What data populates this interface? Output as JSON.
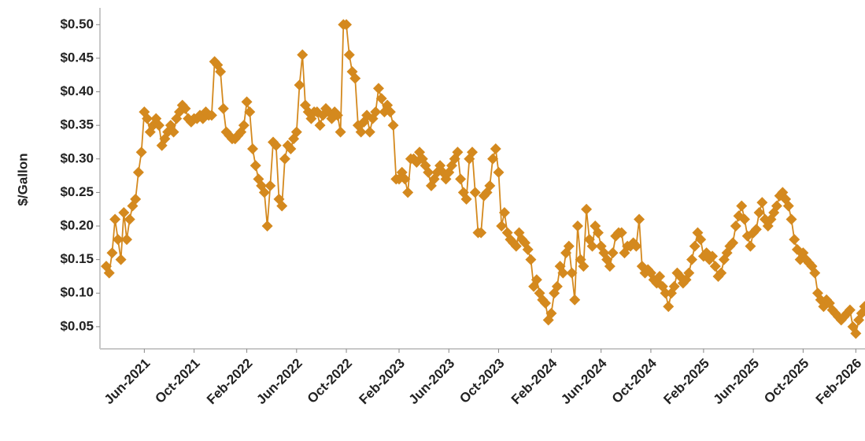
{
  "chart_data": {
    "type": "line",
    "y_label": "$/Gallon",
    "ylim": [
      0.017,
      0.525
    ],
    "yticks": [
      {
        "value": 0.05,
        "label": "$0.05"
      },
      {
        "value": 0.1,
        "label": "$0.10"
      },
      {
        "value": 0.15,
        "label": "$0.15"
      },
      {
        "value": 0.2,
        "label": "$0.20"
      },
      {
        "value": 0.25,
        "label": "$0.25"
      },
      {
        "value": 0.3,
        "label": "$0.30"
      },
      {
        "value": 0.35,
        "label": "$0.35"
      },
      {
        "value": 0.4,
        "label": "$0.40"
      },
      {
        "value": 0.45,
        "label": "$0.45"
      },
      {
        "value": 0.5,
        "label": "$0.50"
      }
    ],
    "categories": [
      null,
      null,
      null,
      null,
      null,
      null,
      null,
      null,
      null,
      null,
      null,
      null,
      null,
      "Jun-2021",
      null,
      null,
      null,
      null,
      null,
      null,
      null,
      null,
      null,
      null,
      null,
      null,
      null,
      null,
      null,
      null,
      "Oct-2021",
      null,
      null,
      null,
      null,
      null,
      null,
      null,
      null,
      null,
      null,
      null,
      null,
      null,
      null,
      null,
      null,
      null,
      "Feb-2022",
      null,
      null,
      null,
      null,
      null,
      null,
      null,
      null,
      null,
      null,
      null,
      null,
      null,
      null,
      null,
      null,
      "Jun-2022",
      null,
      null,
      null,
      null,
      null,
      null,
      null,
      null,
      null,
      null,
      null,
      null,
      null,
      null,
      null,
      null,
      "Oct-2022",
      null,
      null,
      null,
      null,
      null,
      null,
      null,
      null,
      null,
      null,
      null,
      null,
      null,
      null,
      null,
      null,
      null,
      "Feb-2023",
      null,
      null,
      null,
      null,
      null,
      null,
      null,
      null,
      null,
      null,
      null,
      null,
      null,
      null,
      null,
      null,
      "Jun-2023",
      null,
      null,
      null,
      null,
      null,
      null,
      null,
      null,
      null,
      null,
      null,
      null,
      null,
      null,
      null,
      null,
      "Oct-2023",
      null,
      null,
      null,
      null,
      null,
      null,
      null,
      null,
      null,
      null,
      null,
      null,
      null,
      null,
      null,
      null,
      null,
      "Feb-2024",
      null,
      null,
      null,
      null,
      null,
      null,
      null,
      null,
      null,
      null,
      null,
      null,
      null,
      null,
      null,
      null,
      "Jun-2024",
      null,
      null,
      null,
      null,
      null,
      null,
      null,
      null,
      null,
      null,
      null,
      null,
      null,
      null,
      null,
      null,
      "Oct-2024",
      null,
      null,
      null,
      null,
      null,
      null,
      null,
      null,
      null,
      null,
      null,
      null,
      null,
      null,
      null,
      null,
      null,
      "Feb-2025",
      null,
      null,
      null,
      null,
      null,
      null,
      null,
      null,
      null,
      null,
      null,
      null,
      null,
      null,
      null,
      null,
      "Jun-2025",
      null,
      null,
      null,
      null,
      null,
      null,
      null,
      null,
      null,
      null,
      null,
      null,
      null,
      null,
      null,
      null,
      "Oct-2025",
      null,
      null,
      null,
      null,
      null,
      null,
      null,
      null,
      null,
      null,
      null,
      null,
      null,
      null,
      null,
      null,
      null,
      "Feb-2026",
      null,
      null,
      null
    ],
    "series": [
      {
        "color": "#d4891e",
        "values": [
          0.14,
          0.13,
          0.16,
          0.21,
          0.18,
          0.15,
          0.22,
          0.18,
          0.21,
          0.23,
          0.24,
          0.28,
          0.31,
          0.37,
          0.36,
          0.34,
          0.35,
          0.36,
          0.35,
          0.32,
          0.33,
          0.34,
          0.35,
          0.34,
          0.36,
          0.37,
          0.38,
          0.375,
          0.36,
          0.355,
          0.36,
          0.36,
          0.365,
          0.36,
          0.37,
          0.365,
          0.365,
          0.445,
          0.44,
          0.43,
          0.375,
          0.34,
          0.335,
          0.33,
          0.33,
          0.335,
          0.34,
          0.35,
          0.385,
          0.37,
          0.315,
          0.29,
          0.27,
          0.26,
          0.25,
          0.2,
          0.26,
          0.325,
          0.32,
          0.24,
          0.23,
          0.3,
          0.32,
          0.315,
          0.33,
          0.34,
          0.41,
          0.455,
          0.38,
          0.37,
          0.36,
          0.37,
          0.37,
          0.35,
          0.365,
          0.375,
          0.37,
          0.36,
          0.37,
          0.365,
          0.34,
          0.5,
          0.5,
          0.455,
          0.43,
          0.42,
          0.35,
          0.34,
          0.355,
          0.365,
          0.34,
          0.36,
          0.37,
          0.405,
          0.39,
          0.37,
          0.38,
          0.37,
          0.35,
          0.27,
          0.27,
          0.28,
          0.27,
          0.25,
          0.3,
          0.3,
          0.295,
          0.31,
          0.3,
          0.29,
          0.28,
          0.26,
          0.27,
          0.28,
          0.29,
          0.28,
          0.27,
          0.28,
          0.29,
          0.3,
          0.31,
          0.27,
          0.25,
          0.24,
          0.3,
          0.31,
          0.25,
          0.19,
          0.19,
          0.245,
          0.25,
          0.26,
          0.3,
          0.315,
          0.28,
          0.2,
          0.22,
          0.19,
          0.18,
          0.175,
          0.17,
          0.19,
          0.18,
          0.175,
          0.165,
          0.15,
          0.11,
          0.12,
          0.1,
          0.09,
          0.085,
          0.06,
          0.07,
          0.1,
          0.11,
          0.14,
          0.13,
          0.16,
          0.17,
          0.13,
          0.09,
          0.2,
          0.15,
          0.14,
          0.225,
          0.18,
          0.17,
          0.2,
          0.19,
          0.17,
          0.16,
          0.15,
          0.14,
          0.16,
          0.185,
          0.19,
          0.19,
          0.16,
          0.17,
          0.17,
          0.175,
          0.17,
          0.21,
          0.14,
          0.13,
          0.135,
          0.13,
          0.12,
          0.115,
          0.125,
          0.11,
          0.1,
          0.08,
          0.1,
          0.11,
          0.13,
          0.125,
          0.115,
          0.12,
          0.13,
          0.15,
          0.17,
          0.19,
          0.18,
          0.155,
          0.16,
          0.15,
          0.155,
          0.14,
          0.125,
          0.13,
          0.15,
          0.16,
          0.17,
          0.175,
          0.2,
          0.215,
          0.23,
          0.21,
          0.185,
          0.17,
          0.19,
          0.195,
          0.22,
          0.235,
          0.21,
          0.2,
          0.21,
          0.22,
          0.23,
          0.245,
          0.25,
          0.24,
          0.23,
          0.21,
          0.18,
          0.165,
          0.15,
          0.16,
          0.15,
          0.145,
          0.14,
          0.13,
          0.1,
          0.09,
          0.08,
          0.09,
          0.085,
          0.075,
          0.07,
          0.065,
          0.06,
          0.065,
          0.07,
          0.075,
          0.05,
          0.04,
          0.06,
          0.07,
          0.08
        ]
      }
    ]
  }
}
